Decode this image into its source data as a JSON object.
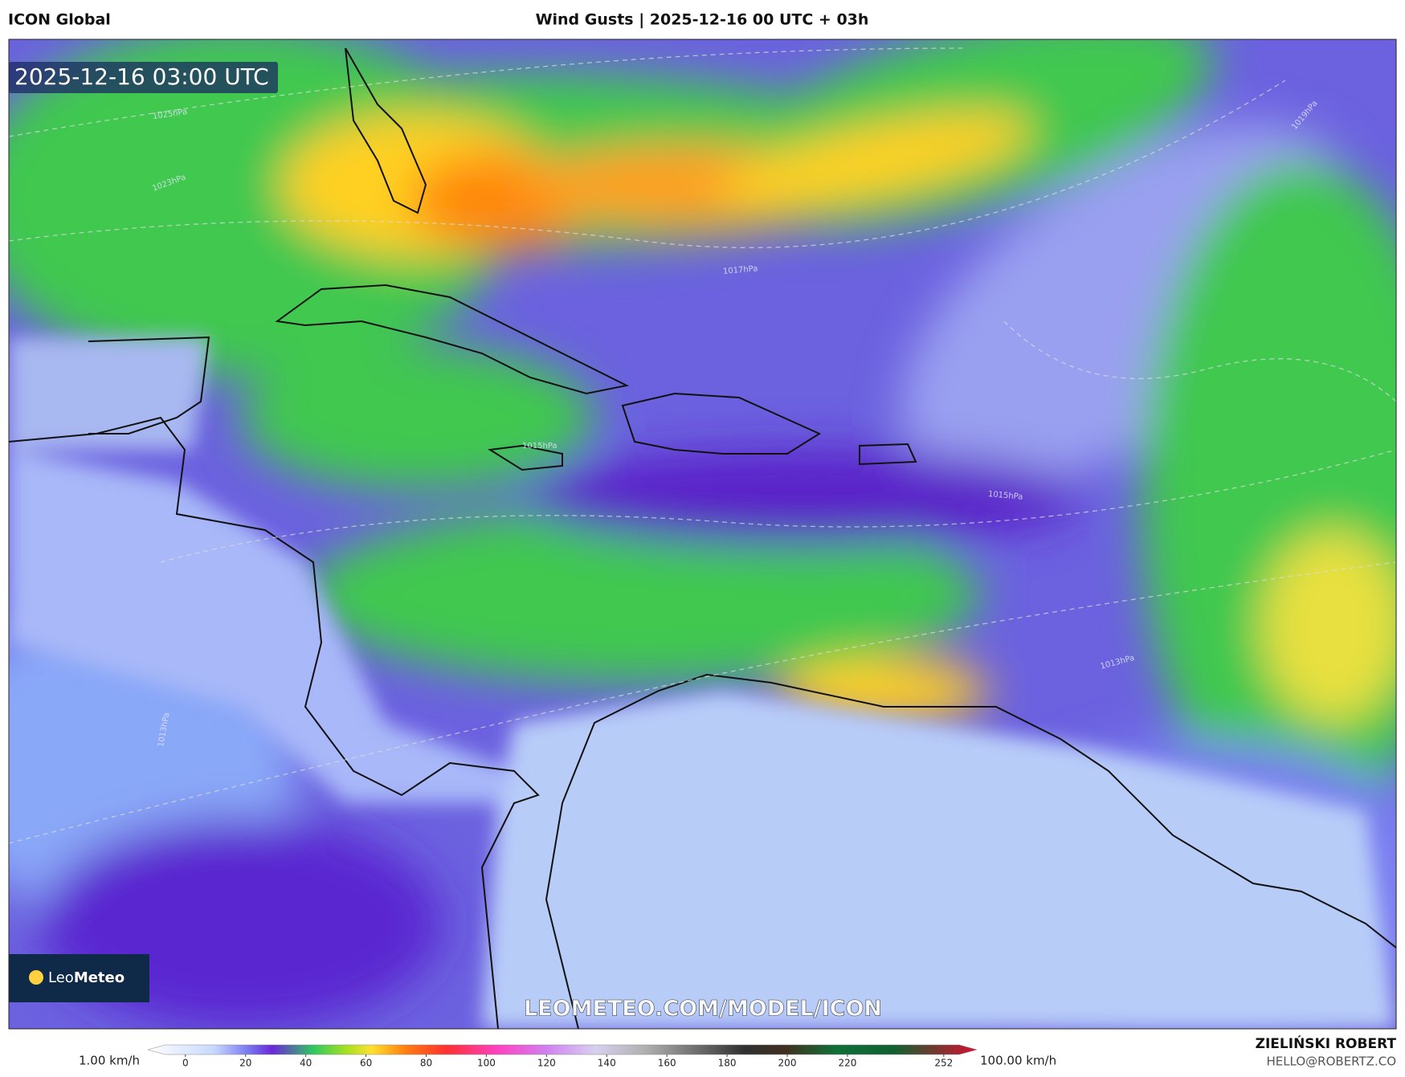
{
  "header": {
    "model": "ICON Global",
    "title": "Wind Gusts | 2025-12-16 00 UTC + 03h"
  },
  "map": {
    "timestamp": "2025-12-16 03:00 UTC",
    "watermark": "LEOMETEO.COM/MODEL/ICON",
    "logo": {
      "part1": "Leo",
      "part2": "Meteo"
    },
    "isobar_labels": [
      "1025hPa",
      "1023hPa",
      "1019hPa",
      "1017hPa",
      "1015hPa",
      "1015hPa",
      "1013hPa",
      "1013hPa"
    ]
  },
  "colorbar": {
    "min_label": "1.00 km/h",
    "max_label": "100.00 km/h",
    "range": [
      -12.5,
      263
    ],
    "ticks": [
      0,
      20,
      40,
      60,
      80,
      100,
      120,
      140,
      160,
      180,
      200,
      220,
      252
    ]
  },
  "footer": {
    "author": "ZIELIŃSKI ROBERT",
    "email": "HELLO@ROBERTZ.CO"
  }
}
